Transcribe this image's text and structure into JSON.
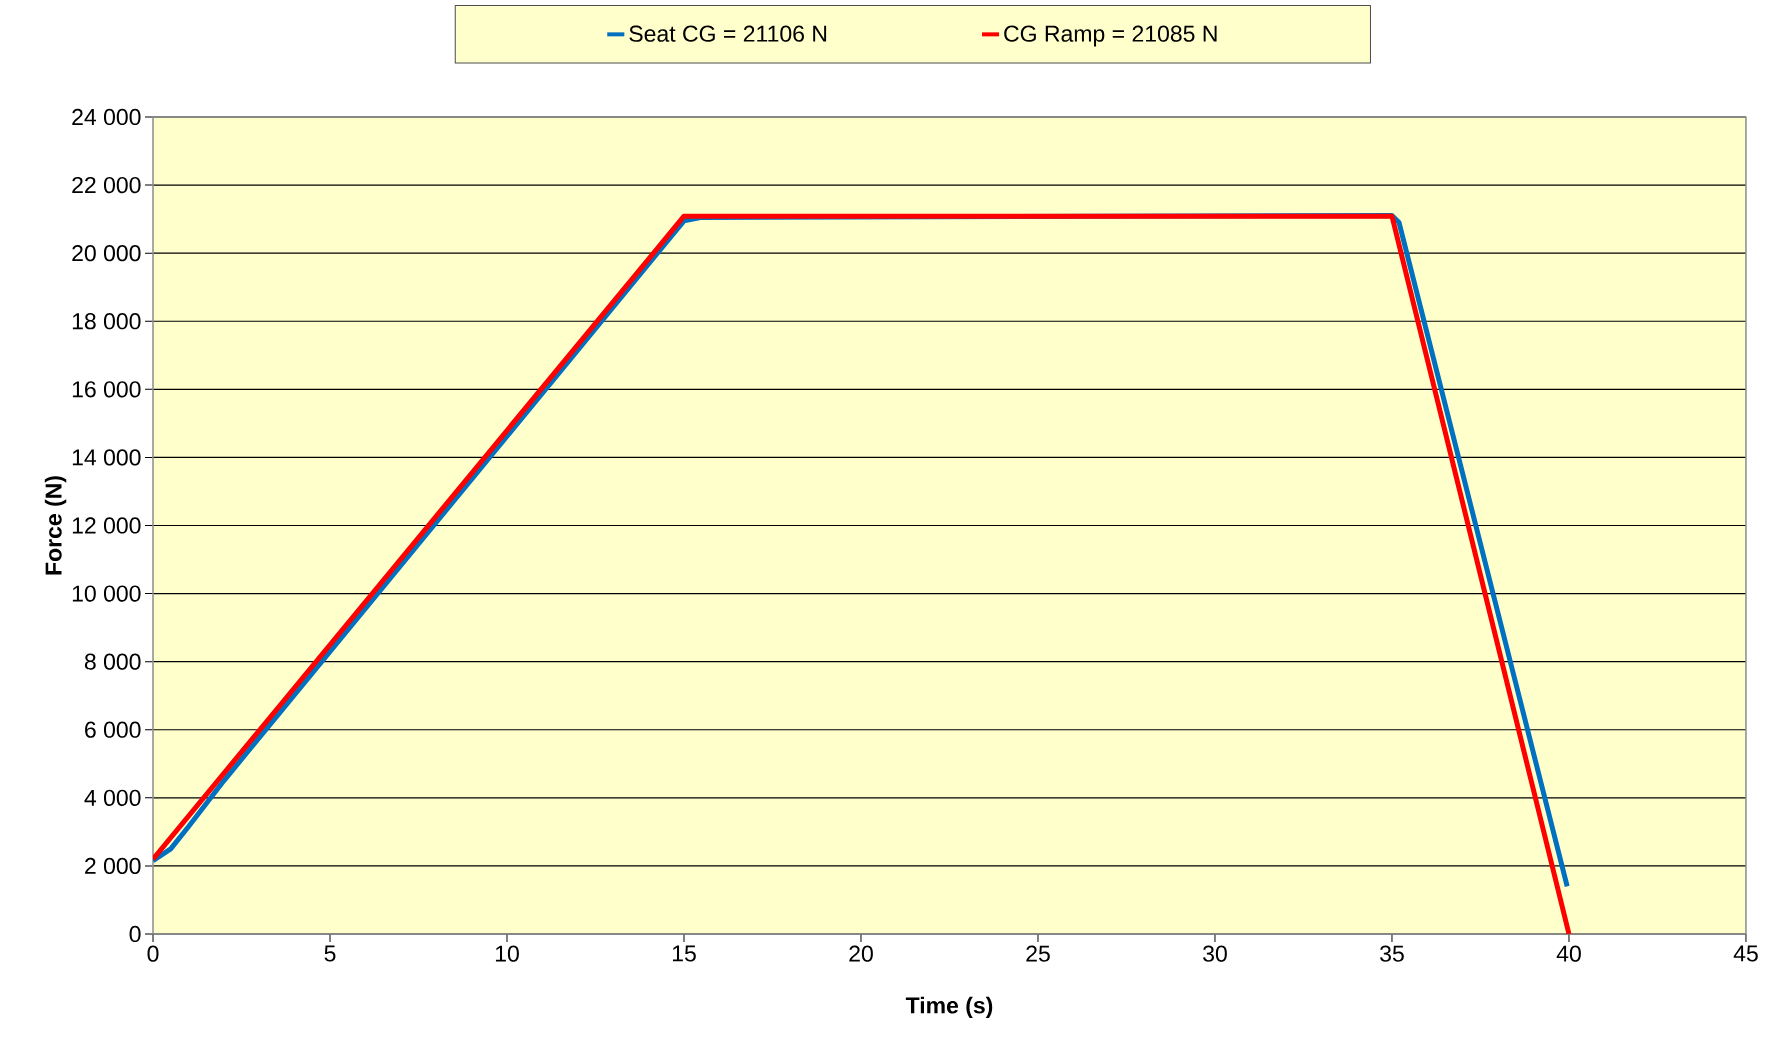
{
  "chart_data": {
    "type": "line",
    "xlabel": "Time (s)",
    "ylabel": "Force (N)",
    "xlim": [
      0,
      45
    ],
    "xticks": [
      0,
      5,
      10,
      15,
      20,
      25,
      30,
      35,
      40,
      45
    ],
    "ylim": [
      0,
      24000
    ],
    "yticks": [
      {
        "value": 0,
        "label": "0"
      },
      {
        "value": 2000,
        "label": "2 000"
      },
      {
        "value": 4000,
        "label": "4 000"
      },
      {
        "value": 6000,
        "label": "6 000"
      },
      {
        "value": 8000,
        "label": "8 000"
      },
      {
        "value": 10000,
        "label": "10 000"
      },
      {
        "value": 12000,
        "label": "12 000"
      },
      {
        "value": 14000,
        "label": "14 000"
      },
      {
        "value": 16000,
        "label": "16 000"
      },
      {
        "value": 18000,
        "label": "18 000"
      },
      {
        "value": 20000,
        "label": "20 000"
      },
      {
        "value": 22000,
        "label": "22 000"
      },
      {
        "value": 24000,
        "label": "24 000"
      }
    ],
    "grid": "y",
    "legend": "top",
    "marker": "none",
    "line_style": "solid",
    "series": [
      {
        "name": "Seat CG = 21106 N",
        "color": "#0070c0",
        "x": [
          0,
          0.5,
          1,
          2,
          15,
          15.5,
          35,
          35.2,
          39.95
        ],
        "values": [
          2150,
          2500,
          3150,
          4500,
          20950,
          21050,
          21106,
          20900,
          1400
        ]
      },
      {
        "name": "CG Ramp = 21085 N",
        "color": "#ff0000",
        "x": [
          0,
          15,
          35,
          40
        ],
        "values": [
          2200,
          21085,
          21085,
          0
        ]
      }
    ]
  }
}
